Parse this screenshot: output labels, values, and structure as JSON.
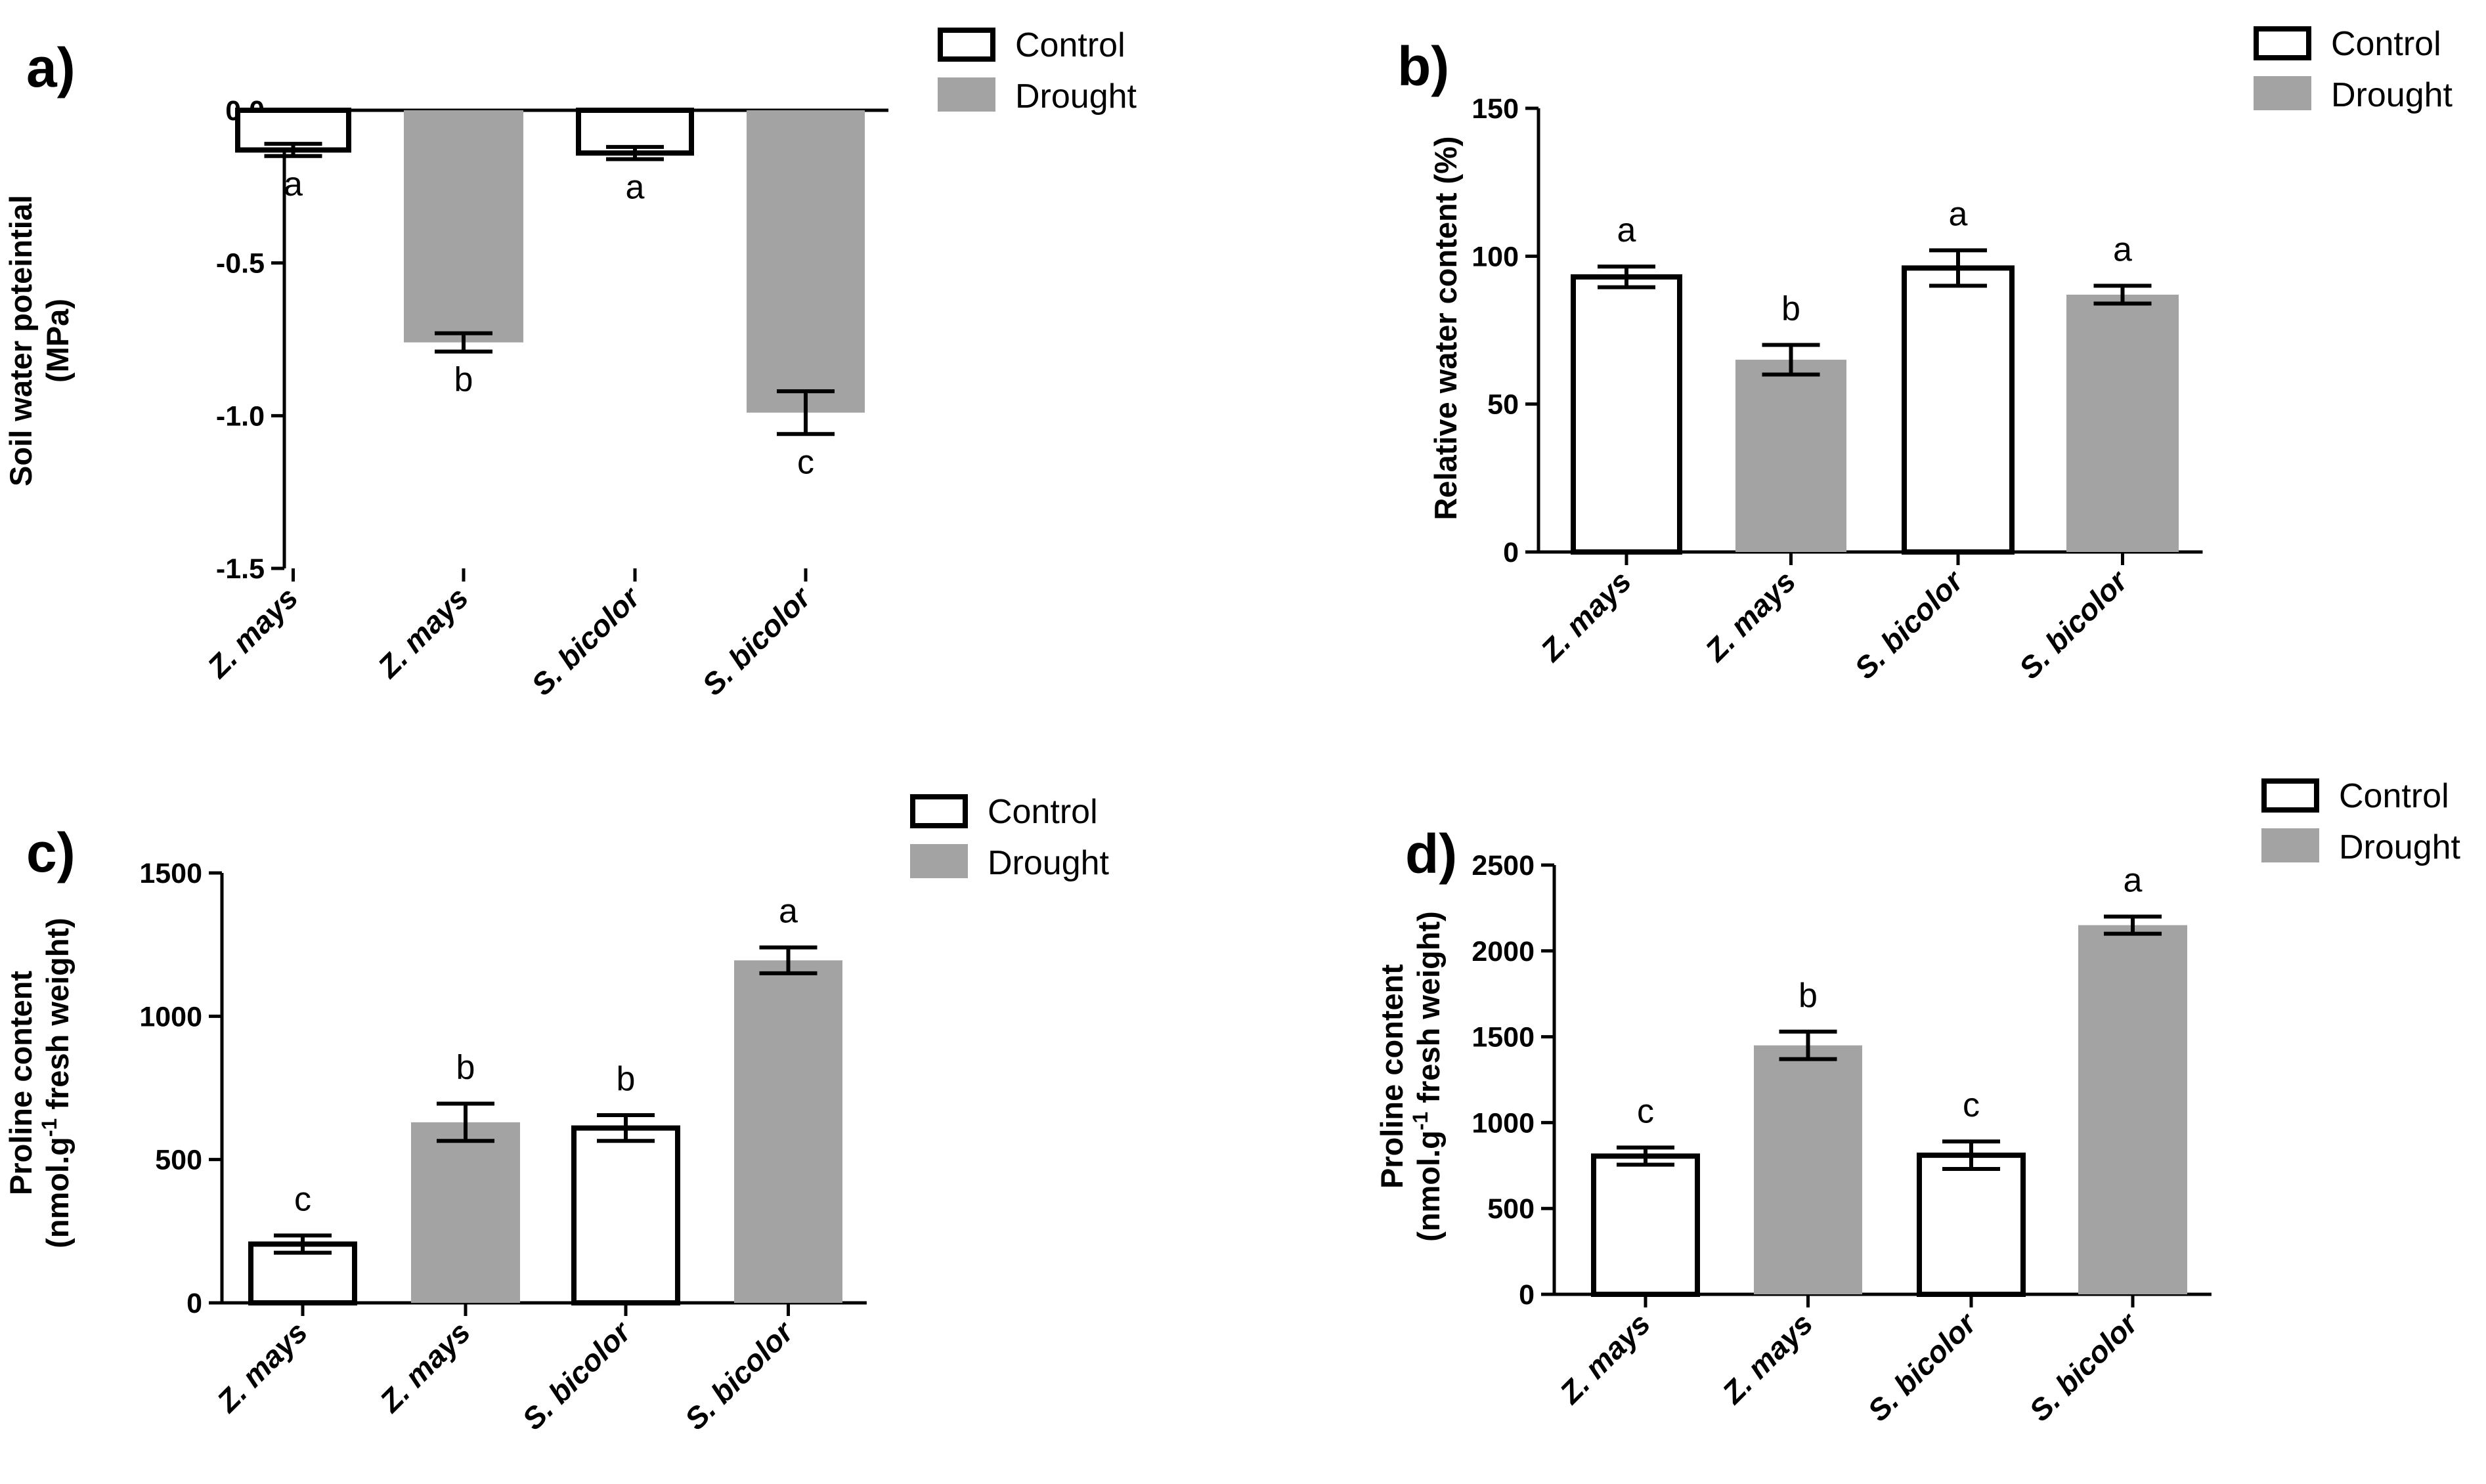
{
  "colors": {
    "control_fill": "#ffffff",
    "drought_fill": "#a3a3a3",
    "stroke": "#000000"
  },
  "legend": {
    "control": "Control",
    "drought": "Drought"
  },
  "chart_data": [
    {
      "panel": "a)",
      "type": "bar",
      "ylabel": [
        "Soil water poteintial",
        "(MPa)"
      ],
      "ylim": [
        -1.5,
        0
      ],
      "yticks": [
        0,
        -0.5,
        -1,
        -1.5
      ],
      "ytick_labels": [
        "0.0",
        "-0.5",
        "-1.0",
        "-1.5"
      ],
      "categories": [
        "Z. mays",
        "Z. mays",
        "S. bicolor",
        "S. bicolor"
      ],
      "treatments": [
        "Control",
        "Drought",
        "Control",
        "Drought"
      ],
      "values": [
        -0.13,
        -0.76,
        -0.14,
        -0.99
      ],
      "errors": [
        0.02,
        0.03,
        0.02,
        0.07
      ],
      "letters": [
        "a",
        "b",
        "a",
        "c"
      ]
    },
    {
      "panel": "b)",
      "type": "bar",
      "ylabel": [
        "Relative water content (%)"
      ],
      "ylim": [
        0,
        150
      ],
      "yticks": [
        0,
        50,
        100,
        150
      ],
      "ytick_labels": [
        "0",
        "50",
        "100",
        "150"
      ],
      "categories": [
        "Z. mays",
        "Z. mays",
        "S. bicolor",
        "S. bicolor"
      ],
      "treatments": [
        "Control",
        "Drought",
        "Control",
        "Drought"
      ],
      "values": [
        93,
        65,
        96,
        87
      ],
      "errors": [
        3.5,
        5,
        6,
        3
      ],
      "letters": [
        "a",
        "b",
        "a",
        "a"
      ]
    },
    {
      "panel": "c)",
      "type": "bar",
      "ylabel": [
        "Proline content",
        "(nmol.g",
        "-1",
        " fresh weight)"
      ],
      "ylim": [
        0,
        1500
      ],
      "yticks": [
        0,
        500,
        1000,
        1500
      ],
      "ytick_labels": [
        "0",
        "500",
        "1000",
        "1500"
      ],
      "categories": [
        "Z. mays",
        "Z. mays",
        "S. bicolor",
        "S. bicolor"
      ],
      "treatments": [
        "Control",
        "Drought",
        "Control",
        "Drought"
      ],
      "values": [
        205,
        630,
        610,
        1195
      ],
      "errors": [
        30,
        65,
        45,
        45
      ],
      "letters": [
        "c",
        "b",
        "b",
        "a"
      ]
    },
    {
      "panel": "d)",
      "type": "bar",
      "ylabel": [
        "Proline content",
        "(nmol.g",
        "-1",
        " fresh weight)"
      ],
      "ylim": [
        0,
        2500
      ],
      "yticks": [
        0,
        500,
        1000,
        1500,
        2000,
        2500
      ],
      "ytick_labels": [
        "0",
        "500",
        "1000",
        "1500",
        "2000",
        "2500"
      ],
      "categories": [
        "Z. mays",
        "Z. mays",
        "S. bicolor",
        "S. bicolor"
      ],
      "treatments": [
        "Control",
        "Drought",
        "Control",
        "Drought"
      ],
      "values": [
        805,
        1450,
        810,
        2150
      ],
      "errors": [
        50,
        80,
        80,
        50
      ],
      "letters": [
        "c",
        "b",
        "c",
        "a"
      ]
    }
  ]
}
